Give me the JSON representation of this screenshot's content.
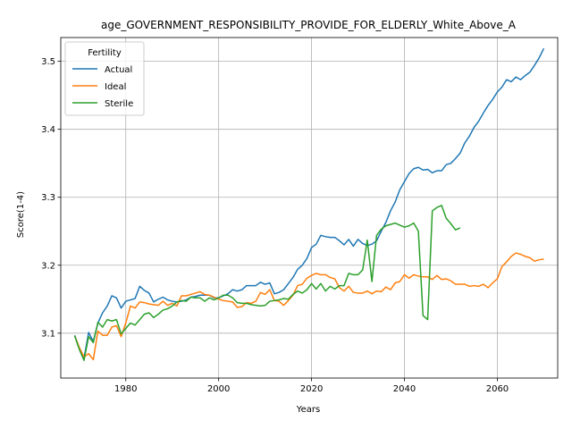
{
  "chart_data": {
    "type": "line",
    "title": "age_GOVERNMENT_RESPONSIBILITY_PROVIDE_FOR_ELDERLY_White_Above_A",
    "xlabel": "Years",
    "ylabel": "Score(1-4)",
    "xlim": [
      1966,
      2073
    ],
    "ylim": [
      3.034,
      3.535
    ],
    "xticks": [
      1980,
      2000,
      2020,
      2040,
      2060
    ],
    "yticks": [
      3.1,
      3.2,
      3.3,
      3.4,
      3.5
    ],
    "grid": true,
    "legend": {
      "title": "Fertility",
      "placement": "top-left"
    },
    "series": [
      {
        "name": "Actual",
        "color": "#1f77b4",
        "points": [
          [
            1969,
            3.097
          ],
          [
            1970,
            3.077
          ],
          [
            1971,
            3.063
          ],
          [
            1972,
            3.101
          ],
          [
            1973,
            3.088
          ],
          [
            1974,
            3.115
          ],
          [
            1975,
            3.13
          ],
          [
            1976,
            3.14
          ],
          [
            1977,
            3.155
          ],
          [
            1978,
            3.152
          ],
          [
            1979,
            3.137
          ],
          [
            1980,
            3.147
          ],
          [
            1981,
            3.149
          ],
          [
            1982,
            3.151
          ],
          [
            1983,
            3.169
          ],
          [
            1984,
            3.163
          ],
          [
            1985,
            3.159
          ],
          [
            1986,
            3.146
          ],
          [
            1987,
            3.15
          ],
          [
            1988,
            3.153
          ],
          [
            1989,
            3.149
          ],
          [
            1990,
            3.147
          ],
          [
            1991,
            3.146
          ],
          [
            1992,
            3.147
          ],
          [
            1993,
            3.149
          ],
          [
            1994,
            3.153
          ],
          [
            1995,
            3.154
          ],
          [
            1996,
            3.156
          ],
          [
            1997,
            3.156
          ],
          [
            1998,
            3.156
          ],
          [
            1999,
            3.152
          ],
          [
            2000,
            3.152
          ],
          [
            2001,
            3.155
          ],
          [
            2002,
            3.158
          ],
          [
            2003,
            3.164
          ],
          [
            2004,
            3.162
          ],
          [
            2005,
            3.164
          ],
          [
            2006,
            3.17
          ],
          [
            2007,
            3.17
          ],
          [
            2008,
            3.17
          ],
          [
            2009,
            3.175
          ],
          [
            2010,
            3.172
          ],
          [
            2011,
            3.174
          ],
          [
            2012,
            3.158
          ],
          [
            2013,
            3.16
          ],
          [
            2014,
            3.164
          ],
          [
            2015,
            3.173
          ],
          [
            2016,
            3.182
          ],
          [
            2017,
            3.194
          ],
          [
            2018,
            3.2
          ],
          [
            2019,
            3.21
          ],
          [
            2020,
            3.226
          ],
          [
            2021,
            3.231
          ],
          [
            2022,
            3.244
          ],
          [
            2023,
            3.242
          ],
          [
            2024,
            3.241
          ],
          [
            2025,
            3.241
          ],
          [
            2026,
            3.236
          ],
          [
            2027,
            3.23
          ],
          [
            2028,
            3.238
          ],
          [
            2029,
            3.228
          ],
          [
            2030,
            3.238
          ],
          [
            2031,
            3.232
          ],
          [
            2032,
            3.229
          ],
          [
            2033,
            3.231
          ],
          [
            2034,
            3.236
          ],
          [
            2035,
            3.25
          ],
          [
            2036,
            3.263
          ],
          [
            2037,
            3.28
          ],
          [
            2038,
            3.293
          ],
          [
            2039,
            3.311
          ],
          [
            2040,
            3.323
          ],
          [
            2041,
            3.335
          ],
          [
            2042,
            3.342
          ],
          [
            2043,
            3.344
          ],
          [
            2044,
            3.34
          ],
          [
            2045,
            3.341
          ],
          [
            2046,
            3.336
          ],
          [
            2047,
            3.339
          ],
          [
            2048,
            3.339
          ],
          [
            2049,
            3.348
          ],
          [
            2050,
            3.35
          ],
          [
            2051,
            3.357
          ],
          [
            2052,
            3.365
          ],
          [
            2053,
            3.38
          ],
          [
            2054,
            3.39
          ],
          [
            2055,
            3.403
          ],
          [
            2056,
            3.412
          ],
          [
            2057,
            3.424
          ],
          [
            2058,
            3.435
          ],
          [
            2059,
            3.444
          ],
          [
            2060,
            3.455
          ],
          [
            2061,
            3.462
          ],
          [
            2062,
            3.473
          ],
          [
            2063,
            3.47
          ],
          [
            2064,
            3.477
          ],
          [
            2065,
            3.473
          ],
          [
            2066,
            3.479
          ],
          [
            2067,
            3.484
          ],
          [
            2068,
            3.494
          ],
          [
            2069,
            3.505
          ],
          [
            2070,
            3.519
          ]
        ]
      },
      {
        "name": "Ideal",
        "color": "#ff7f0e",
        "points": [
          [
            1969,
            3.096
          ],
          [
            1970,
            3.079
          ],
          [
            1971,
            3.065
          ],
          [
            1972,
            3.07
          ],
          [
            1973,
            3.061
          ],
          [
            1974,
            3.103
          ],
          [
            1975,
            3.097
          ],
          [
            1976,
            3.097
          ],
          [
            1977,
            3.109
          ],
          [
            1978,
            3.111
          ],
          [
            1979,
            3.095
          ],
          [
            1980,
            3.115
          ],
          [
            1981,
            3.14
          ],
          [
            1982,
            3.137
          ],
          [
            1983,
            3.146
          ],
          [
            1984,
            3.145
          ],
          [
            1985,
            3.143
          ],
          [
            1986,
            3.142
          ],
          [
            1987,
            3.141
          ],
          [
            1988,
            3.147
          ],
          [
            1989,
            3.141
          ],
          [
            1990,
            3.144
          ],
          [
            1991,
            3.14
          ],
          [
            1992,
            3.155
          ],
          [
            1993,
            3.155
          ],
          [
            1994,
            3.157
          ],
          [
            1995,
            3.159
          ],
          [
            1996,
            3.161
          ],
          [
            1997,
            3.157
          ],
          [
            1998,
            3.156
          ],
          [
            1999,
            3.153
          ],
          [
            2000,
            3.15
          ],
          [
            2001,
            3.148
          ],
          [
            2002,
            3.147
          ],
          [
            2003,
            3.146
          ],
          [
            2004,
            3.138
          ],
          [
            2005,
            3.139
          ],
          [
            2006,
            3.145
          ],
          [
            2007,
            3.144
          ],
          [
            2008,
            3.147
          ],
          [
            2009,
            3.16
          ],
          [
            2010,
            3.157
          ],
          [
            2011,
            3.164
          ],
          [
            2012,
            3.148
          ],
          [
            2013,
            3.147
          ],
          [
            2014,
            3.141
          ],
          [
            2015,
            3.148
          ],
          [
            2016,
            3.156
          ],
          [
            2017,
            3.17
          ],
          [
            2018,
            3.172
          ],
          [
            2019,
            3.181
          ],
          [
            2020,
            3.185
          ],
          [
            2021,
            3.188
          ],
          [
            2022,
            3.186
          ],
          [
            2023,
            3.186
          ],
          [
            2024,
            3.182
          ],
          [
            2025,
            3.18
          ],
          [
            2026,
            3.167
          ],
          [
            2027,
            3.162
          ],
          [
            2028,
            3.169
          ],
          [
            2029,
            3.16
          ],
          [
            2030,
            3.159
          ],
          [
            2031,
            3.159
          ],
          [
            2032,
            3.162
          ],
          [
            2033,
            3.158
          ],
          [
            2034,
            3.162
          ],
          [
            2035,
            3.161
          ],
          [
            2036,
            3.168
          ],
          [
            2037,
            3.164
          ],
          [
            2038,
            3.174
          ],
          [
            2039,
            3.176
          ],
          [
            2040,
            3.186
          ],
          [
            2041,
            3.181
          ],
          [
            2042,
            3.186
          ],
          [
            2043,
            3.184
          ],
          [
            2044,
            3.183
          ],
          [
            2045,
            3.183
          ],
          [
            2046,
            3.179
          ],
          [
            2047,
            3.185
          ],
          [
            2048,
            3.179
          ],
          [
            2049,
            3.18
          ],
          [
            2050,
            3.177
          ],
          [
            2051,
            3.172
          ],
          [
            2052,
            3.172
          ],
          [
            2053,
            3.172
          ],
          [
            2054,
            3.169
          ],
          [
            2055,
            3.17
          ],
          [
            2056,
            3.169
          ],
          [
            2057,
            3.172
          ],
          [
            2058,
            3.167
          ],
          [
            2059,
            3.174
          ],
          [
            2060,
            3.18
          ],
          [
            2061,
            3.198
          ],
          [
            2062,
            3.205
          ],
          [
            2063,
            3.213
          ],
          [
            2064,
            3.218
          ],
          [
            2065,
            3.216
          ],
          [
            2066,
            3.213
          ],
          [
            2067,
            3.211
          ],
          [
            2068,
            3.206
          ],
          [
            2069,
            3.208
          ],
          [
            2070,
            3.209
          ]
        ]
      },
      {
        "name": "Sterile",
        "color": "#2ca02c",
        "points": [
          [
            1969,
            3.096
          ],
          [
            1970,
            3.076
          ],
          [
            1971,
            3.06
          ],
          [
            1972,
            3.095
          ],
          [
            1973,
            3.086
          ],
          [
            1974,
            3.116
          ],
          [
            1975,
            3.109
          ],
          [
            1976,
            3.12
          ],
          [
            1977,
            3.118
          ],
          [
            1978,
            3.12
          ],
          [
            1979,
            3.099
          ],
          [
            1980,
            3.107
          ],
          [
            1981,
            3.115
          ],
          [
            1982,
            3.112
          ],
          [
            1983,
            3.12
          ],
          [
            1984,
            3.128
          ],
          [
            1985,
            3.13
          ],
          [
            1986,
            3.123
          ],
          [
            1987,
            3.128
          ],
          [
            1988,
            3.134
          ],
          [
            1989,
            3.136
          ],
          [
            1990,
            3.14
          ],
          [
            1991,
            3.146
          ],
          [
            1992,
            3.148
          ],
          [
            1993,
            3.147
          ],
          [
            1994,
            3.153
          ],
          [
            1995,
            3.152
          ],
          [
            1996,
            3.152
          ],
          [
            1997,
            3.147
          ],
          [
            1998,
            3.152
          ],
          [
            1999,
            3.149
          ],
          [
            2000,
            3.152
          ],
          [
            2001,
            3.156
          ],
          [
            2002,
            3.156
          ],
          [
            2003,
            3.152
          ],
          [
            2004,
            3.145
          ],
          [
            2005,
            3.144
          ],
          [
            2006,
            3.144
          ],
          [
            2007,
            3.142
          ],
          [
            2008,
            3.141
          ],
          [
            2009,
            3.14
          ],
          [
            2010,
            3.141
          ],
          [
            2011,
            3.147
          ],
          [
            2012,
            3.148
          ],
          [
            2013,
            3.149
          ],
          [
            2014,
            3.151
          ],
          [
            2015,
            3.15
          ],
          [
            2016,
            3.157
          ],
          [
            2017,
            3.162
          ],
          [
            2018,
            3.159
          ],
          [
            2019,
            3.164
          ],
          [
            2020,
            3.173
          ],
          [
            2021,
            3.165
          ],
          [
            2022,
            3.173
          ],
          [
            2023,
            3.162
          ],
          [
            2024,
            3.169
          ],
          [
            2025,
            3.165
          ],
          [
            2026,
            3.17
          ],
          [
            2027,
            3.17
          ],
          [
            2028,
            3.188
          ],
          [
            2029,
            3.186
          ],
          [
            2030,
            3.186
          ],
          [
            2031,
            3.193
          ],
          [
            2032,
            3.237
          ],
          [
            2033,
            3.176
          ],
          [
            2034,
            3.244
          ],
          [
            2035,
            3.253
          ],
          [
            2036,
            3.258
          ],
          [
            2037,
            3.26
          ],
          [
            2038,
            3.262
          ],
          [
            2039,
            3.259
          ],
          [
            2040,
            3.256
          ],
          [
            2041,
            3.258
          ],
          [
            2042,
            3.262
          ],
          [
            2043,
            3.25
          ],
          [
            2044,
            3.126
          ],
          [
            2045,
            3.12
          ],
          [
            2046,
            3.28
          ],
          [
            2047,
            3.285
          ],
          [
            2048,
            3.288
          ],
          [
            2049,
            3.269
          ],
          [
            2050,
            3.261
          ],
          [
            2051,
            3.252
          ],
          [
            2052,
            3.255
          ]
        ]
      }
    ]
  }
}
